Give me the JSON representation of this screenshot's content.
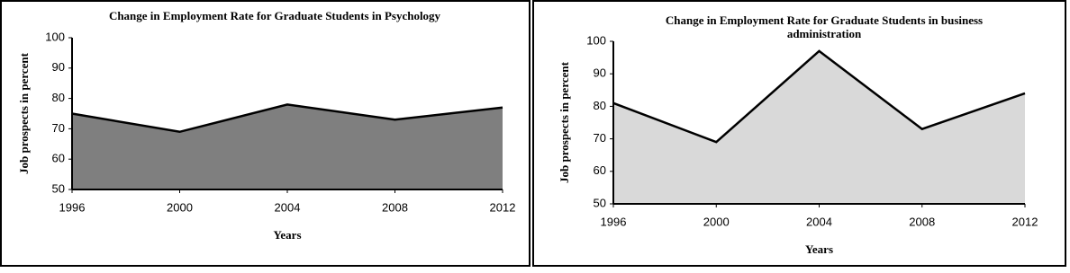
{
  "chart_data": [
    {
      "type": "area",
      "title": "Change in Employment Rate for Graduate Students in Psychology",
      "x_label": "Years",
      "y_label": "Job prospects in percent",
      "x": [
        1996,
        2000,
        2004,
        2008,
        2012
      ],
      "values": [
        75,
        69,
        78,
        73,
        77
      ],
      "color": "#7f7f7f",
      "line_color": "#000000",
      "xlim": [
        1996,
        2012
      ],
      "xticks": [
        1996,
        2000,
        2004,
        2008,
        2012
      ],
      "ylim": [
        50,
        100
      ],
      "yticks": [
        50,
        60,
        70,
        80,
        90,
        100
      ],
      "grid": false
    },
    {
      "type": "area",
      "title": "Change in Employment Rate for Graduate Students in business administration",
      "x_label": "Years",
      "y_label": "Job prospects in percent",
      "x": [
        1996,
        2000,
        2004,
        2008,
        2012
      ],
      "values": [
        81,
        69,
        97,
        73,
        84
      ],
      "color": "#d9d9d9",
      "line_color": "#000000",
      "xlim": [
        1996,
        2012
      ],
      "xticks": [
        1996,
        2000,
        2004,
        2008,
        2012
      ],
      "ylim": [
        50,
        100
      ],
      "yticks": [
        50,
        60,
        70,
        80,
        90,
        100
      ],
      "grid": false
    }
  ]
}
